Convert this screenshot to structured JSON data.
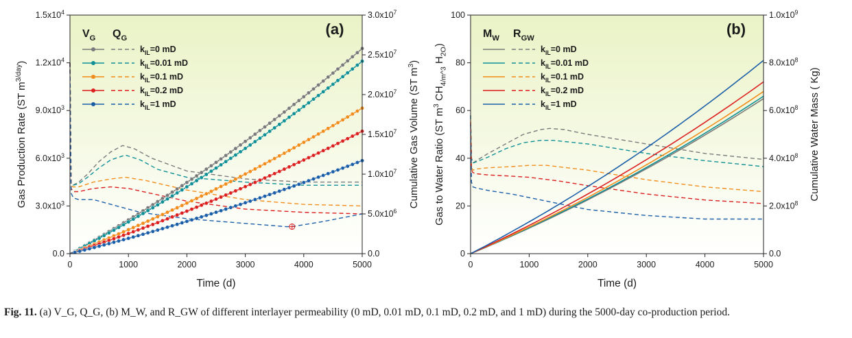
{
  "colors": {
    "series": [
      "#7a7a7a",
      "#0f8f96",
      "#f28c1a",
      "#dc1f1f",
      "#1b5ea8"
    ],
    "grad_top": "#eaf3c6",
    "grad_bottom": "#ffffff"
  },
  "series_labels": [
    "k_IL=0 mD",
    "k_IL=0.01 mD",
    "k_IL=0.1 mD",
    "k_IL=0.2 mD",
    "k_IL=1 mD"
  ],
  "chart_data": [
    {
      "panel": "(a)",
      "type": "line",
      "title": "(a)",
      "xlabel": "Time (d)",
      "ylabel_left": "Gas Production Rate (ST m3/day)",
      "ylabel_right": "Cumulative Gas Volume (ST m3)",
      "xlim": [
        0,
        5000
      ],
      "ylim_left": [
        0,
        15000
      ],
      "ylim_right": [
        0,
        30000000
      ],
      "x_ticks": [
        "0",
        "1000",
        "2000",
        "3000",
        "4000",
        "5000"
      ],
      "y_left_ticks": [
        "0.0",
        "3.0x10^3",
        "6.0x10^3",
        "9.0x10^3",
        "1.2x10^4",
        "1.5x10^4"
      ],
      "y_right_ticks": [
        "0.0",
        "5.0x10^6",
        "1.0x10^7",
        "1.5x10^7",
        "2.0x10^7",
        "2.5x10^7",
        "3.0x10^7"
      ],
      "legend_solid": "V_G",
      "legend_dashed": "Q_G",
      "legend_position": "top-left",
      "solid_series_axis": "right",
      "dashed_series_axis": "left",
      "solid_series": [
        {
          "name": "k_IL=0 mD",
          "final_value": 25800000
        },
        {
          "name": "k_IL=0.01 mD",
          "final_value": 24200000
        },
        {
          "name": "k_IL=0.1 mD",
          "final_value": 18300000
        },
        {
          "name": "k_IL=0.2 mD",
          "final_value": 15400000
        },
        {
          "name": "k_IL=1 mD",
          "final_value": 11700000
        }
      ],
      "dashed_series": [
        {
          "name": "k_IL=0 mD",
          "x": [
            0,
            20,
            50,
            150,
            300,
            500,
            700,
            900,
            1100,
            1400,
            2000,
            3000,
            4000,
            5000
          ],
          "y": [
            12000,
            4400,
            4300,
            4500,
            5000,
            5800,
            6400,
            6800,
            6600,
            6000,
            5200,
            4700,
            4500,
            4500
          ]
        },
        {
          "name": "k_IL=0.01 mD",
          "x": [
            0,
            20,
            50,
            150,
            300,
            500,
            700,
            950,
            1200,
            1500,
            2000,
            3000,
            4000,
            5000
          ],
          "y": [
            12000,
            4400,
            4300,
            4400,
            4800,
            5400,
            5900,
            6200,
            5900,
            5300,
            4800,
            4500,
            4300,
            4300
          ]
        },
        {
          "name": "k_IL=0.1 mD",
          "x": [
            0,
            20,
            50,
            150,
            400,
            700,
            950,
            1300,
            2000,
            3000,
            4000,
            5000
          ],
          "y": [
            12000,
            4300,
            4200,
            4200,
            4500,
            4700,
            4800,
            4600,
            4000,
            3400,
            3100,
            3000
          ]
        },
        {
          "name": "k_IL=0.2 mD",
          "x": [
            0,
            20,
            60,
            150,
            400,
            700,
            1000,
            1500,
            2000,
            3000,
            4000,
            5000
          ],
          "y": [
            12000,
            4100,
            3900,
            3900,
            4100,
            4200,
            4100,
            3700,
            3300,
            2800,
            2600,
            2500
          ]
        },
        {
          "name": "k_IL=1 mD",
          "x": [
            0,
            20,
            60,
            150,
            400,
            800,
            1200,
            2000,
            3000,
            3700,
            3800,
            4300,
            5000
          ],
          "y": [
            12000,
            3800,
            3500,
            3400,
            3400,
            3000,
            2600,
            2200,
            1900,
            1700,
            1700,
            2000,
            2500
          ]
        }
      ],
      "annotation": {
        "x": 3800,
        "y": 1700,
        "marker": "crosshair-circle"
      }
    },
    {
      "panel": "(b)",
      "type": "line",
      "title": "(b)",
      "xlabel": "Time (d)",
      "ylabel_left": "Gas to Water Ratio (ST m3 CH4/m3 H2O)",
      "ylabel_right": "Cumulative Water Mass ( Kg)",
      "xlim": [
        0,
        5000
      ],
      "ylim_left": [
        0,
        100
      ],
      "ylim_right": [
        0,
        1000000000
      ],
      "x_ticks": [
        "0",
        "1000",
        "2000",
        "3000",
        "4000",
        "5000"
      ],
      "y_left_ticks": [
        "0",
        "20",
        "40",
        "60",
        "80",
        "100"
      ],
      "y_right_ticks": [
        "0.0",
        "2.0x10^8",
        "4.0x10^8",
        "6.0x10^8",
        "8.0x10^8",
        "1.0x10^9"
      ],
      "legend_solid": "M_W",
      "legend_dashed": "R_GW",
      "legend_position": "top-left",
      "solid_series_axis": "right",
      "dashed_series_axis": "left",
      "solid_series": [
        {
          "name": "k_IL=0 mD",
          "final_value": 650000000
        },
        {
          "name": "k_IL=0.01 mD",
          "final_value": 660000000
        },
        {
          "name": "k_IL=0.1 mD",
          "final_value": 680000000
        },
        {
          "name": "k_IL=0.2 mD",
          "final_value": 720000000
        },
        {
          "name": "k_IL=1 mD",
          "final_value": 810000000
        }
      ],
      "dashed_series": [
        {
          "name": "k_IL=0 mD",
          "x": [
            0,
            15,
            40,
            100,
            300,
            600,
            900,
            1200,
            1350,
            1600,
            2000,
            3000,
            4000,
            5000
          ],
          "y": [
            58,
            40,
            38,
            39,
            42,
            46,
            50,
            52,
            52.5,
            52,
            50,
            46,
            42,
            39.5
          ]
        },
        {
          "name": "k_IL=0.01 mD",
          "x": [
            0,
            15,
            40,
            100,
            300,
            600,
            900,
            1200,
            1400,
            2000,
            3000,
            4000,
            5000
          ],
          "y": [
            58,
            40,
            38,
            38.5,
            40.5,
            44,
            46.5,
            47.5,
            47.5,
            46,
            42,
            39,
            36.5
          ]
        },
        {
          "name": "k_IL=0.1 mD",
          "x": [
            0,
            15,
            40,
            100,
            300,
            700,
            1000,
            1300,
            2000,
            3000,
            4000,
            5000
          ],
          "y": [
            56,
            36,
            35,
            35.5,
            36,
            36.5,
            37,
            37,
            35,
            31,
            28,
            26
          ]
        },
        {
          "name": "k_IL=0.2 mD",
          "x": [
            0,
            15,
            40,
            100,
            300,
            700,
            1000,
            1500,
            2000,
            3000,
            4000,
            5000
          ],
          "y": [
            55,
            35,
            34,
            33.5,
            33,
            32.5,
            32,
            30.5,
            28.5,
            25,
            22.5,
            21
          ]
        },
        {
          "name": "k_IL=1 mD",
          "x": [
            0,
            15,
            40,
            100,
            300,
            700,
            1000,
            1500,
            2000,
            3000,
            4000,
            5000
          ],
          "y": [
            54,
            30,
            28,
            27.5,
            26.5,
            25,
            23.5,
            21,
            18.5,
            16,
            14.5,
            14.5
          ]
        }
      ]
    }
  ],
  "caption": {
    "label": "Fig. 11.",
    "text": "(a) V_G, Q_G, (b) M_W, and R_GW of different interlayer permeability (0 mD, 0.01 mD, 0.1 mD, 0.2 mD, and 1 mD) during the 5000-day co-production period."
  }
}
